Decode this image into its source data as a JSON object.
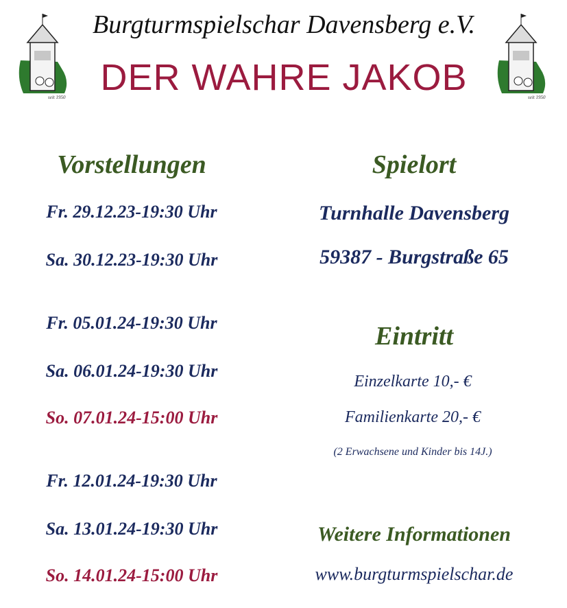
{
  "header": {
    "club": "Burgturmspielschar Davensberg e.V.",
    "title": "DER WAHRE JAKOB",
    "logo_caption": "seit 1950"
  },
  "colors": {
    "title": "#9b1b3f",
    "heading": "#3b5a23",
    "text": "#1b2a5e"
  },
  "performances": {
    "heading": "Vorstellungen",
    "dates": [
      {
        "text": "Fr. 29.12.23-19:30 Uhr",
        "highlight": false
      },
      {
        "text": "Sa. 30.12.23-19:30 Uhr",
        "highlight": false
      },
      {
        "text": "Fr. 05.01.24-19:30 Uhr",
        "highlight": false
      },
      {
        "text": "Sa. 06.01.24-19:30 Uhr",
        "highlight": false
      },
      {
        "text": "So. 07.01.24-15:00 Uhr",
        "highlight": true
      },
      {
        "text": "Fr. 12.01.24-19:30 Uhr",
        "highlight": false
      },
      {
        "text": "Sa. 13.01.24-19:30 Uhr",
        "highlight": false
      },
      {
        "text": "So. 14.01.24-15:00 Uhr",
        "highlight": true
      }
    ]
  },
  "venue": {
    "heading": "Spielort",
    "name": "Turnhalle Davensberg",
    "address": "59387 - Burgstraße 65"
  },
  "admission": {
    "heading": "Eintritt",
    "single": "Einzelkarte 10,- €",
    "family": "Familienkarte 20,- €",
    "family_note": "(2 Erwachsene und Kinder bis 14J.)"
  },
  "info": {
    "heading": "Weitere Informationen",
    "url": "www.burgturmspielschar.de"
  }
}
